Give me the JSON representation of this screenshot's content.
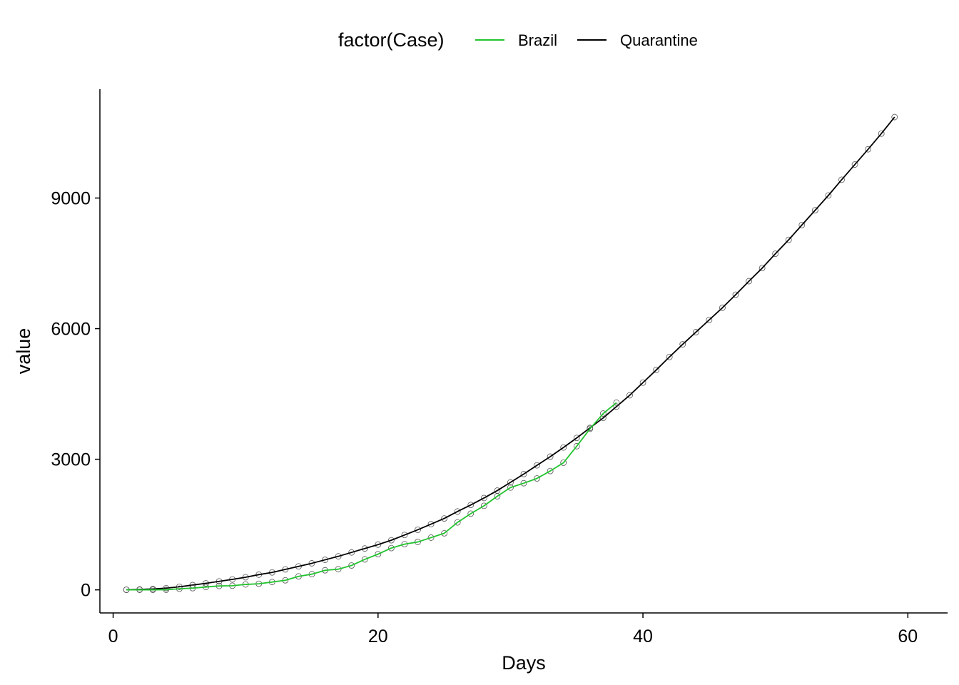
{
  "chart_data": {
    "type": "line",
    "title": "",
    "xlabel": "Days",
    "ylabel": "value",
    "xlim": [
      -1,
      63
    ],
    "ylim": [
      -530,
      11500
    ],
    "x_ticks": [
      0,
      20,
      40,
      60
    ],
    "x_tick_labels": [
      "0",
      "20",
      "40",
      "60"
    ],
    "y_ticks": [
      0,
      3000,
      6000,
      9000
    ],
    "y_tick_labels": [
      "0",
      "3000",
      "6000",
      "9000"
    ],
    "grid": false,
    "legend": {
      "title": "factor(Case)",
      "placement": "top",
      "entries": [
        "Brazil",
        "Quarantine"
      ]
    },
    "series": [
      {
        "name": "Brazil",
        "color": "#22c32e",
        "markers": "open-circle",
        "x": [
          1,
          2,
          3,
          4,
          5,
          6,
          7,
          8,
          9,
          10,
          11,
          12,
          13,
          14,
          15,
          16,
          17,
          18,
          19,
          20,
          21,
          22,
          23,
          24,
          25,
          26,
          27,
          28,
          29,
          30,
          31,
          32,
          33,
          34,
          35,
          36,
          37,
          38
        ],
        "y": [
          1,
          2,
          2,
          3,
          25,
          40,
          65,
          90,
          95,
          125,
          140,
          180,
          220,
          310,
          360,
          450,
          475,
          560,
          700,
          820,
          960,
          1050,
          1100,
          1200,
          1300,
          1550,
          1750,
          1930,
          2150,
          2350,
          2450,
          2560,
          2730,
          2920,
          3300,
          3700,
          4050,
          4300
        ]
      },
      {
        "name": "Quarantine",
        "color": "#000000",
        "markers": "open-circle",
        "x": [
          1,
          2,
          3,
          4,
          5,
          6,
          7,
          8,
          9,
          10,
          11,
          12,
          13,
          14,
          15,
          16,
          17,
          18,
          19,
          20,
          21,
          22,
          23,
          24,
          25,
          26,
          27,
          28,
          29,
          30,
          31,
          32,
          33,
          34,
          35,
          36,
          37,
          38,
          39,
          40,
          41,
          42,
          43,
          44,
          45,
          46,
          47,
          48,
          49,
          50,
          51,
          52,
          53,
          54,
          55,
          56,
          57,
          58,
          59
        ],
        "y": [
          3,
          10,
          20,
          40,
          70,
          110,
          150,
          195,
          240,
          290,
          350,
          400,
          470,
          540,
          610,
          690,
          770,
          860,
          950,
          1040,
          1140,
          1260,
          1380,
          1510,
          1640,
          1800,
          1950,
          2110,
          2280,
          2470,
          2660,
          2860,
          3060,
          3270,
          3490,
          3720,
          3950,
          4210,
          4470,
          4760,
          5050,
          5350,
          5640,
          5920,
          6200,
          6480,
          6780,
          7090,
          7390,
          7720,
          8040,
          8380,
          8720,
          9060,
          9420,
          9770,
          10120,
          10480,
          10860
        ]
      }
    ]
  }
}
